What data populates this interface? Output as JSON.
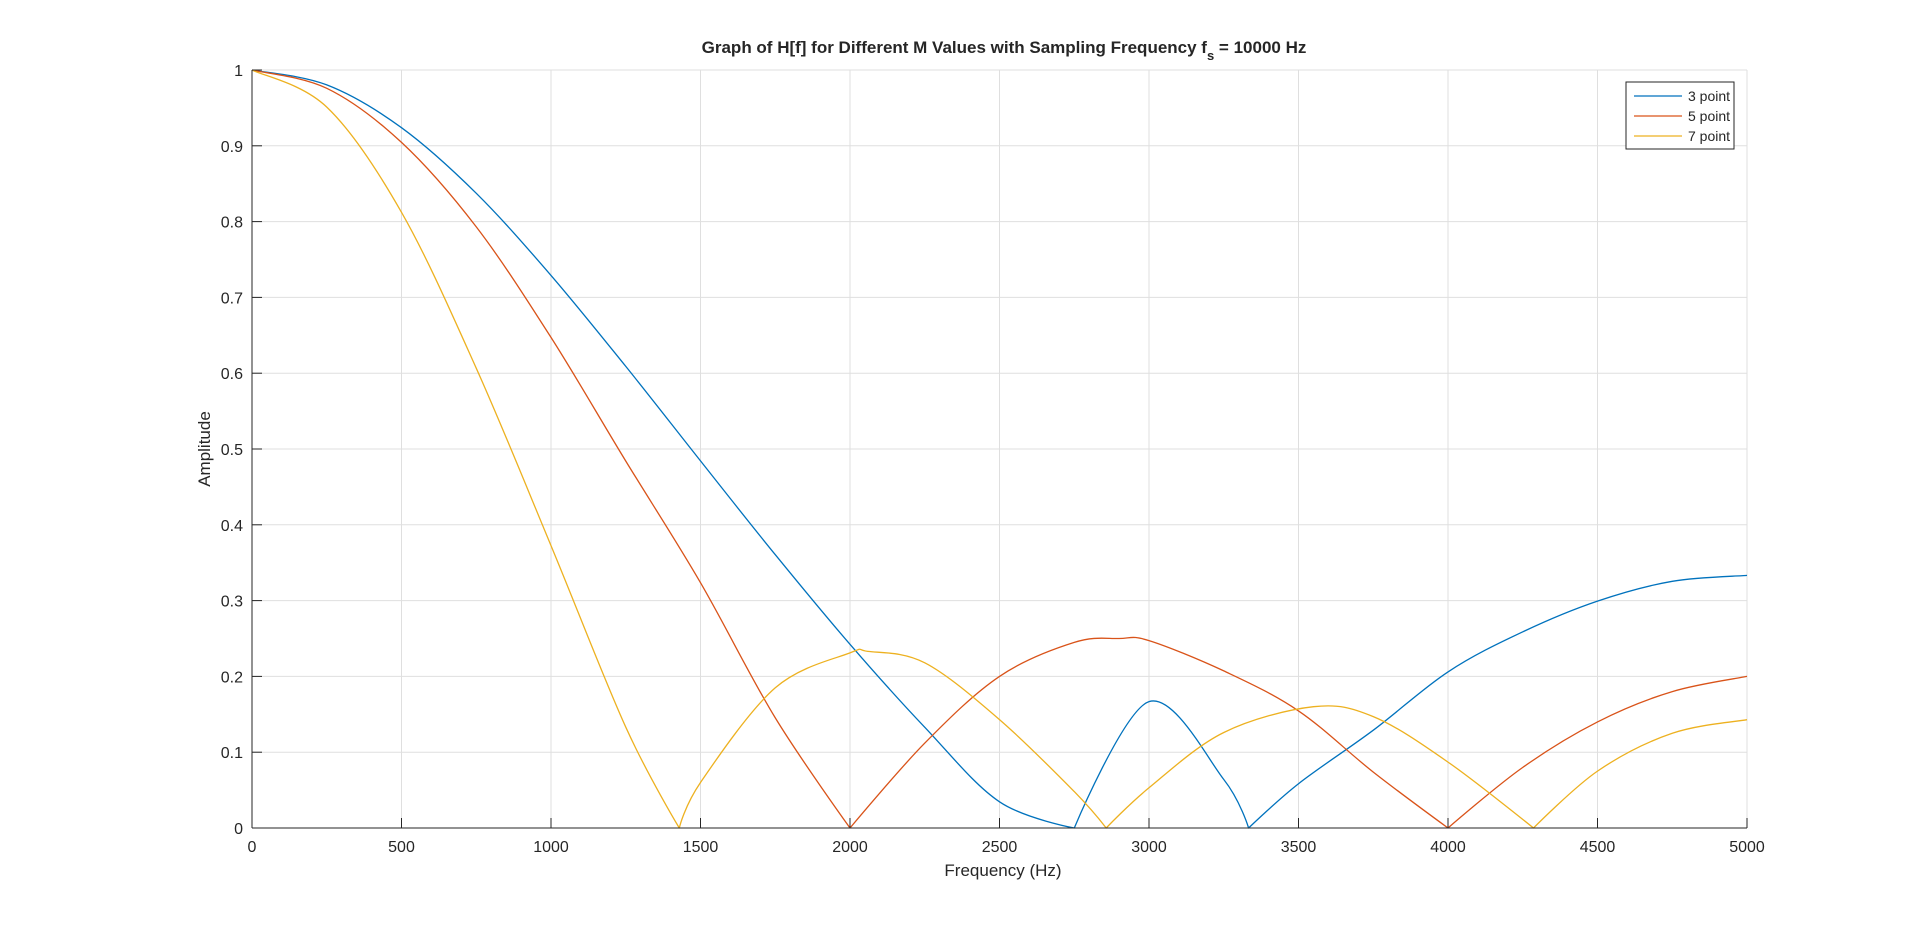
{
  "chart_data": {
    "type": "line",
    "title": "Graph of H[f] for Different M Values with Sampling Frequency f",
    "title_subscript": "s",
    "title_suffix": " = 10000 Hz",
    "xlabel": "Frequency (Hz)",
    "ylabel": "Amplitude",
    "xlim": [
      0,
      5000
    ],
    "ylim": [
      0,
      1
    ],
    "x_ticks": [
      0,
      500,
      1000,
      1500,
      2000,
      2500,
      3000,
      3500,
      4000,
      4500,
      5000
    ],
    "x_tick_labels": [
      "0",
      "500",
      "1000",
      "1500",
      "2000",
      "2500",
      "3000",
      "3500",
      "4000",
      "4500",
      "5000"
    ],
    "y_ticks": [
      0,
      0.1,
      0.2,
      0.3,
      0.4,
      0.5,
      0.6,
      0.7,
      0.8,
      0.9,
      1
    ],
    "y_tick_labels": [
      "0",
      "0.1",
      "0.2",
      "0.3",
      "0.4",
      "0.5",
      "0.6",
      "0.7",
      "0.8",
      "0.9",
      "1"
    ],
    "grid": true,
    "legend_position": "top-right",
    "sampling_frequency": 10000,
    "series": [
      {
        "name": "3 point",
        "color": "#0072BD",
        "x": [
          0,
          250,
          500,
          750,
          1000,
          1250,
          1500,
          1750,
          2000,
          2250,
          2500,
          2750,
          3000,
          3250,
          3333,
          3500,
          3750,
          4000,
          4250,
          4500,
          4750,
          5000
        ],
        "values": [
          1,
          0.9804,
          0.9239,
          0.8373,
          0.729,
          0.609,
          0.4843,
          0.3606,
          0.2423,
          0.1329,
          0.0345,
          0.0,
          0.1667,
          0.064,
          0.0,
          0.0585,
          0.129,
          0.206,
          0.2589,
          0.2994,
          0.3254,
          0.3333
        ]
      },
      {
        "name": "5 point",
        "color": "#D95319",
        "x": [
          0,
          250,
          500,
          750,
          1000,
          1250,
          1500,
          1750,
          2000,
          2250,
          2500,
          2750,
          2900,
          3000,
          3250,
          3500,
          3750,
          4000,
          4250,
          4500,
          4750,
          5000
        ],
        "values": [
          1,
          0.9758,
          0.9045,
          0.793,
          0.6472,
          0.4841,
          0.3236,
          0.1453,
          0.0,
          0.112,
          0.2,
          0.2449,
          0.25,
          0.2472,
          0.2072,
          0.1545,
          0.0738,
          0.0,
          0.08,
          0.14,
          0.18,
          0.2
        ]
      },
      {
        "name": "7 point",
        "color": "#EDB120",
        "x": [
          0,
          250,
          500,
          750,
          1000,
          1250,
          1429,
          1500,
          1750,
          2000,
          2060,
          2250,
          2500,
          2750,
          2857,
          3000,
          3250,
          3550,
          3750,
          4000,
          4286,
          4500,
          4750,
          5000
        ],
        "values": [
          1,
          0.9511,
          0.8123,
          0.6065,
          0.3726,
          0.133,
          0.0,
          0.06,
          0.185,
          0.231,
          0.233,
          0.218,
          0.143,
          0.048,
          0.0,
          0.053,
          0.126,
          0.16,
          0.147,
          0.087,
          0.0,
          0.075,
          0.125,
          0.1429
        ]
      }
    ]
  }
}
